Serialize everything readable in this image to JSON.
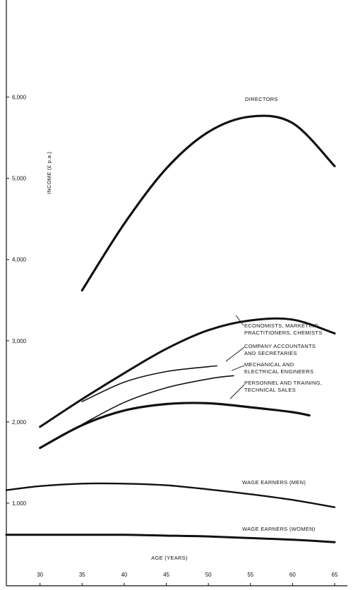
{
  "chart_data": {
    "type": "line",
    "xlabel": "AGE (YEARS)",
    "ylabel": "INCOME (£ p.a.)",
    "xlim": [
      26,
      65
    ],
    "ylim": [
      0,
      6700
    ],
    "x_ticks": [
      30,
      35,
      40,
      45,
      50,
      55,
      60,
      65
    ],
    "y_ticks": [
      1000,
      2000,
      3000,
      4000,
      5000,
      6000
    ],
    "y_tick_labels": [
      "1,000",
      "2,000",
      "3,000",
      "4,000",
      "5,000",
      "6,000"
    ],
    "grid": false,
    "series": [
      {
        "name": "DIRECTORS",
        "label_lines": [
          "DIRECTORS"
        ],
        "weight": 3.2,
        "x": [
          35,
          40,
          45,
          50,
          55,
          60,
          65
        ],
        "y": [
          3620,
          4440,
          5120,
          5570,
          5760,
          5680,
          5150
        ]
      },
      {
        "name": "ECONOMISTS, MARKETING PRACTITIONERS, CHEMISTS",
        "label_lines": [
          "ECONOMISTS, MARKETING",
          "PRACTITIONERS, CHEMISTS"
        ],
        "weight": 3.0,
        "x": [
          30,
          35,
          40,
          45,
          50,
          55,
          60,
          65
        ],
        "y": [
          1940,
          2280,
          2600,
          2900,
          3130,
          3250,
          3260,
          3090
        ]
      },
      {
        "name": "COMPANY ACCOUNTANTS AND SECRETARIES",
        "label_lines": [
          "COMPANY ACCOUNTANTS",
          "AND SECRETARIES"
        ],
        "weight": 1.6,
        "x": [
          35,
          40,
          45,
          50,
          51
        ],
        "y": [
          2250,
          2490,
          2620,
          2680,
          2690
        ]
      },
      {
        "name": "MECHANICAL AND ELECTRICAL ENGINEERS",
        "label_lines": [
          "MECHANICAL AND",
          "ELECTRICAL ENGINEERS"
        ],
        "weight": 1.6,
        "x": [
          35,
          40,
          45,
          50,
          53
        ],
        "y": [
          1970,
          2240,
          2420,
          2530,
          2570
        ]
      },
      {
        "name": "PERSONNEL AND TRAINING, TECHNICAL SALES",
        "label_lines": [
          "PERSONNEL AND TRAINING,",
          "TECHNICAL SALES"
        ],
        "weight": 3.2,
        "x": [
          30,
          35,
          40,
          45,
          50,
          55,
          60,
          62
        ],
        "y": [
          1680,
          1960,
          2140,
          2220,
          2230,
          2180,
          2120,
          2080
        ]
      },
      {
        "name": "WAGE EARNERS (MEN)",
        "label_lines": [
          "WAGE EARNERS (MEN)"
        ],
        "weight": 2.4,
        "x": [
          26,
          30,
          35,
          40,
          45,
          50,
          55,
          60,
          65
        ],
        "y": [
          1160,
          1210,
          1240,
          1240,
          1220,
          1170,
          1110,
          1040,
          950
        ]
      },
      {
        "name": "WAGE EARNERS (WOMEN)",
        "label_lines": [
          "WAGE EARNERS (WOMEN)"
        ],
        "weight": 3.0,
        "x": [
          26,
          30,
          35,
          40,
          45,
          50,
          55,
          60,
          65
        ],
        "y": [
          610,
          610,
          610,
          610,
          600,
          590,
          570,
          550,
          520
        ]
      }
    ]
  }
}
